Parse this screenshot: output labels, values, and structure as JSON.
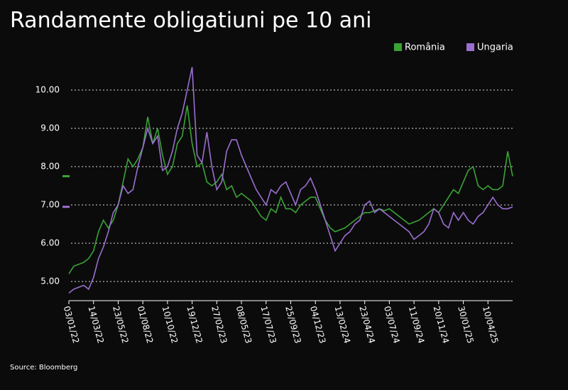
{
  "chart_data": {
    "type": "line",
    "title": "Randamente obligatiuni pe 10 ani",
    "source": "Source: Bloomberg",
    "categories": [
      "03/01/22",
      null,
      null,
      null,
      null,
      "14/03/22",
      null,
      null,
      null,
      null,
      "23/05/22",
      null,
      null,
      null,
      null,
      "01/08/22",
      null,
      null,
      null,
      null,
      "10/10/22",
      null,
      null,
      null,
      null,
      "19/12/22",
      null,
      null,
      null,
      null,
      "27/02/23",
      null,
      null,
      null,
      null,
      "08/05/23",
      null,
      null,
      null,
      null,
      "17/07/23",
      null,
      null,
      null,
      null,
      "25/09/23",
      null,
      null,
      null,
      null,
      "04/12/23",
      null,
      null,
      null,
      null,
      "13/02/24",
      null,
      null,
      null,
      null,
      "23/04/24",
      null,
      null,
      null,
      null,
      "03/07/24",
      null,
      null,
      null,
      null,
      "11/09/24",
      null,
      null,
      null,
      null,
      "20/11/24",
      null,
      null,
      null,
      null,
      "30/01/25",
      null,
      null,
      null,
      null,
      "10/04/25",
      null,
      null,
      null,
      null,
      null
    ],
    "series": [
      {
        "name": "România",
        "color": "#3aa335",
        "values": [
          5.2,
          5.4,
          5.45,
          5.5,
          5.6,
          5.8,
          6.3,
          6.6,
          6.4,
          6.6,
          7.0,
          7.6,
          8.2,
          8.0,
          8.2,
          8.5,
          9.3,
          8.6,
          9.0,
          8.3,
          7.8,
          8.0,
          8.6,
          8.8,
          9.6,
          8.6,
          8.0,
          8.1,
          7.6,
          7.5,
          7.6,
          7.8,
          7.4,
          7.5,
          7.2,
          7.3,
          7.2,
          7.1,
          6.9,
          6.7,
          6.6,
          6.9,
          6.8,
          7.2,
          6.9,
          6.9,
          6.8,
          7.0,
          7.1,
          7.2,
          7.2,
          6.9,
          6.6,
          6.4,
          6.3,
          6.35,
          6.4,
          6.5,
          6.6,
          6.7,
          6.8,
          6.8,
          6.85,
          6.9,
          6.85,
          6.9,
          6.8,
          6.7,
          6.6,
          6.5,
          6.55,
          6.6,
          6.7,
          6.8,
          6.9,
          6.8,
          7.0,
          7.2,
          7.4,
          7.3,
          7.6,
          7.9,
          8.0,
          7.5,
          7.4,
          7.5,
          7.4,
          7.4,
          7.5,
          8.4,
          7.75
        ]
      },
      {
        "name": "Ungaria",
        "color": "#9b6fd0",
        "values": [
          4.7,
          4.8,
          4.85,
          4.9,
          4.8,
          5.1,
          5.6,
          5.9,
          6.3,
          6.8,
          7.0,
          7.5,
          7.3,
          7.4,
          8.0,
          8.5,
          9.0,
          8.6,
          8.8,
          7.9,
          8.0,
          8.4,
          9.0,
          9.4,
          10.0,
          10.6,
          8.3,
          8.1,
          8.9,
          8.0,
          7.4,
          7.6,
          8.4,
          8.7,
          8.7,
          8.3,
          8.0,
          7.7,
          7.4,
          7.2,
          7.0,
          7.4,
          7.3,
          7.5,
          7.6,
          7.3,
          7.0,
          7.4,
          7.5,
          7.7,
          7.4,
          7.0,
          6.6,
          6.2,
          5.8,
          6.0,
          6.2,
          6.3,
          6.5,
          6.6,
          7.0,
          7.1,
          6.8,
          6.9,
          6.8,
          6.7,
          6.6,
          6.5,
          6.4,
          6.3,
          6.1,
          6.2,
          6.3,
          6.5,
          6.9,
          6.8,
          6.5,
          6.4,
          6.8,
          6.6,
          6.8,
          6.6,
          6.5,
          6.7,
          6.8,
          7.0,
          7.2,
          7.0,
          6.9,
          6.9,
          6.95
        ]
      }
    ],
    "ylim": [
      4.5,
      11
    ],
    "yticks": [
      {
        "value": 5,
        "label": "5.00"
      },
      {
        "value": 6,
        "label": "6.00"
      },
      {
        "value": 7,
        "label": "7.00"
      },
      {
        "value": 8,
        "label": "8.00"
      },
      {
        "value": 9,
        "label": "9.00"
      },
      {
        "value": 10,
        "label": "10.00"
      }
    ],
    "grid": true,
    "legend": "top-right"
  }
}
